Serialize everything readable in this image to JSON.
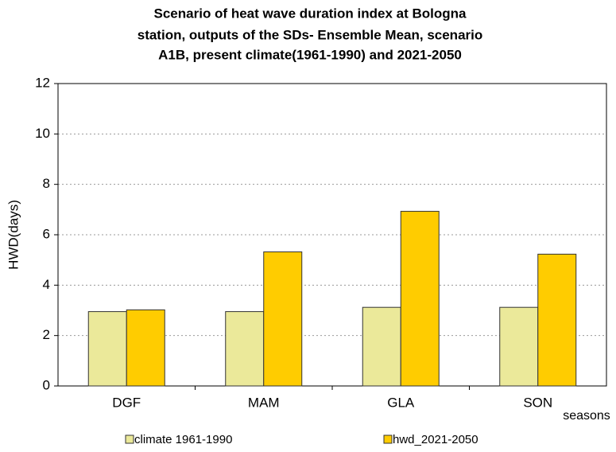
{
  "chart_data": {
    "type": "bar",
    "title": [
      "Scenario of heat wave duration index at Bologna",
      "station, outputs of the SDs- Ensemble Mean, scenario",
      "A1B, present climate(1961-1990) and 2021-2050"
    ],
    "ylabel": "HWD(days)",
    "xlabel": "seasons",
    "categories": [
      "DGF",
      "MAM",
      "GLA",
      "SON"
    ],
    "series": [
      {
        "name": "climate 1961-1990",
        "color": "#ebe99a",
        "values": [
          2.95,
          2.95,
          3.12,
          3.12
        ]
      },
      {
        "name": "hwd_2021-2050",
        "color": "#ffcc00",
        "values": [
          3.02,
          5.32,
          6.93,
          5.23
        ]
      }
    ],
    "ylim": [
      0,
      12
    ],
    "yticks": [
      0,
      2,
      4,
      6,
      8,
      10,
      12
    ],
    "grid": true,
    "legend": "bottom"
  }
}
